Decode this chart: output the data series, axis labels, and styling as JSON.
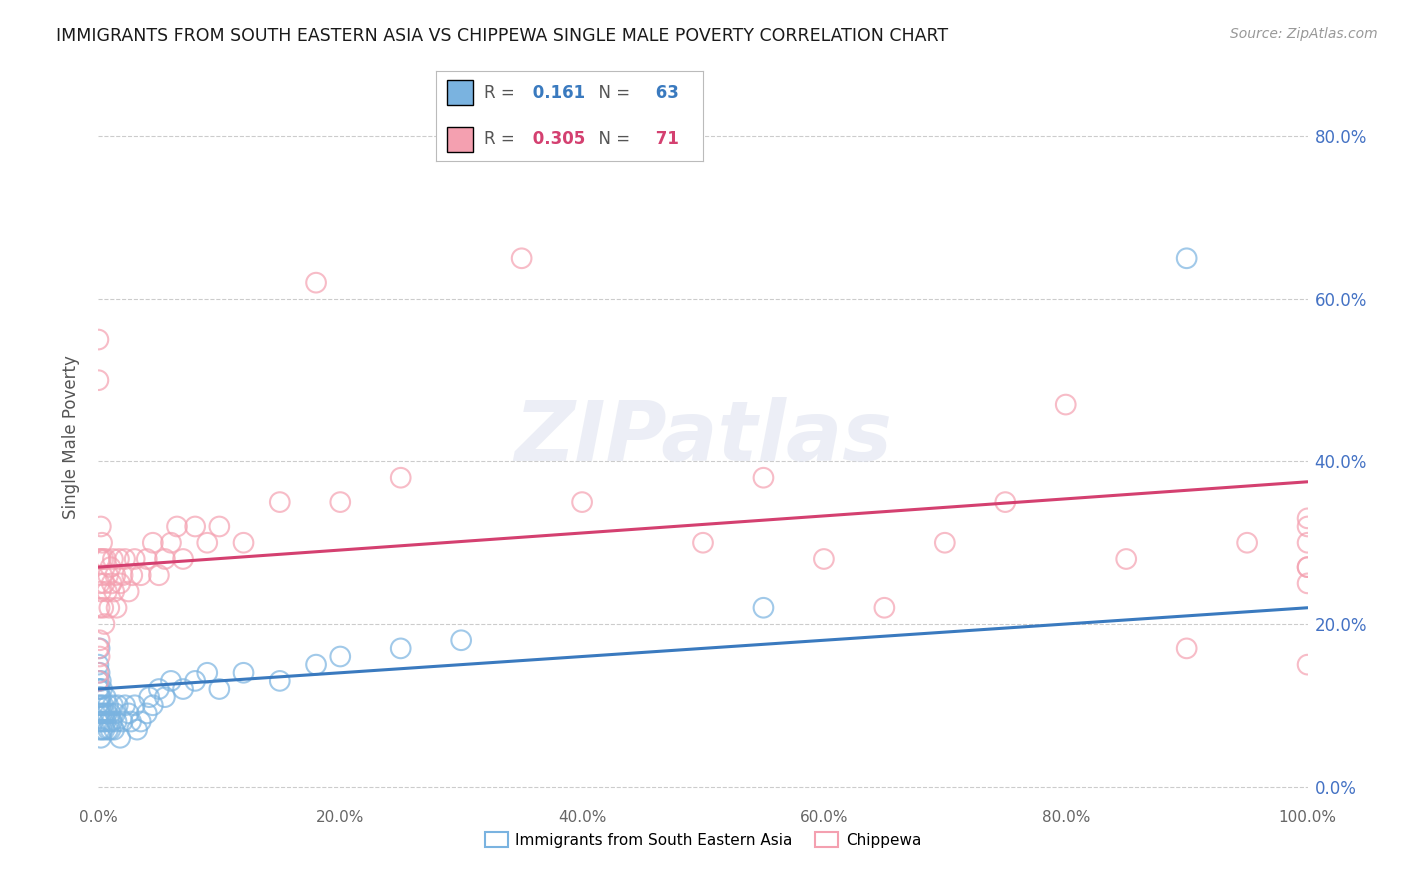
{
  "title": "IMMIGRANTS FROM SOUTH EASTERN ASIA VS CHIPPEWA SINGLE MALE POVERTY CORRELATION CHART",
  "source": "Source: ZipAtlas.com",
  "ylabel": "Single Male Poverty",
  "xlabel": "",
  "xlim": [
    0.0,
    1.0
  ],
  "ylim": [
    -0.02,
    0.88
  ],
  "blue_R": 0.161,
  "blue_N": 63,
  "pink_R": 0.305,
  "pink_N": 71,
  "blue_color": "#7ab3e0",
  "pink_color": "#f4a0b0",
  "blue_line_color": "#3a7abf",
  "pink_line_color": "#d44070",
  "blue_scatter": {
    "x": [
      0.0,
      0.0,
      0.0,
      0.0,
      0.0,
      0.001,
      0.001,
      0.001,
      0.001,
      0.001,
      0.001,
      0.002,
      0.002,
      0.002,
      0.002,
      0.002,
      0.003,
      0.003,
      0.003,
      0.004,
      0.004,
      0.005,
      0.005,
      0.006,
      0.006,
      0.007,
      0.008,
      0.008,
      0.009,
      0.01,
      0.01,
      0.011,
      0.012,
      0.013,
      0.014,
      0.015,
      0.016,
      0.018,
      0.02,
      0.022,
      0.025,
      0.027,
      0.03,
      0.032,
      0.035,
      0.04,
      0.042,
      0.045,
      0.05,
      0.055,
      0.06,
      0.07,
      0.08,
      0.09,
      0.1,
      0.12,
      0.15,
      0.18,
      0.2,
      0.25,
      0.3,
      0.55,
      0.9
    ],
    "y": [
      0.13,
      0.1,
      0.08,
      0.12,
      0.15,
      0.17,
      0.14,
      0.12,
      0.07,
      0.09,
      0.11,
      0.13,
      0.1,
      0.08,
      0.06,
      0.11,
      0.09,
      0.07,
      0.12,
      0.08,
      0.1,
      0.07,
      0.09,
      0.08,
      0.11,
      0.09,
      0.07,
      0.1,
      0.08,
      0.07,
      0.09,
      0.08,
      0.1,
      0.07,
      0.09,
      0.08,
      0.1,
      0.06,
      0.08,
      0.1,
      0.09,
      0.08,
      0.1,
      0.07,
      0.08,
      0.09,
      0.11,
      0.1,
      0.12,
      0.11,
      0.13,
      0.12,
      0.13,
      0.14,
      0.12,
      0.14,
      0.13,
      0.15,
      0.16,
      0.17,
      0.18,
      0.22,
      0.65
    ]
  },
  "pink_scatter": {
    "x": [
      0.0,
      0.0,
      0.0,
      0.0,
      0.0,
      0.001,
      0.001,
      0.001,
      0.001,
      0.001,
      0.002,
      0.002,
      0.002,
      0.003,
      0.003,
      0.004,
      0.004,
      0.005,
      0.005,
      0.006,
      0.007,
      0.008,
      0.009,
      0.01,
      0.011,
      0.012,
      0.013,
      0.014,
      0.015,
      0.017,
      0.018,
      0.02,
      0.022,
      0.025,
      0.028,
      0.03,
      0.035,
      0.04,
      0.045,
      0.05,
      0.055,
      0.06,
      0.065,
      0.07,
      0.08,
      0.09,
      0.1,
      0.12,
      0.15,
      0.18,
      0.2,
      0.25,
      0.35,
      0.4,
      0.5,
      0.55,
      0.6,
      0.65,
      0.7,
      0.75,
      0.8,
      0.85,
      0.9,
      0.95,
      1.0,
      1.0,
      1.0,
      1.0,
      1.0,
      1.0,
      1.0
    ],
    "y": [
      0.55,
      0.5,
      0.17,
      0.14,
      0.13,
      0.28,
      0.25,
      0.22,
      0.18,
      0.16,
      0.32,
      0.28,
      0.24,
      0.3,
      0.26,
      0.28,
      0.22,
      0.25,
      0.2,
      0.28,
      0.24,
      0.26,
      0.22,
      0.27,
      0.25,
      0.28,
      0.24,
      0.26,
      0.22,
      0.28,
      0.25,
      0.26,
      0.28,
      0.24,
      0.26,
      0.28,
      0.26,
      0.28,
      0.3,
      0.26,
      0.28,
      0.3,
      0.32,
      0.28,
      0.32,
      0.3,
      0.32,
      0.3,
      0.35,
      0.62,
      0.35,
      0.38,
      0.65,
      0.35,
      0.3,
      0.38,
      0.28,
      0.22,
      0.3,
      0.35,
      0.47,
      0.28,
      0.17,
      0.3,
      0.27,
      0.32,
      0.3,
      0.25,
      0.15,
      0.27,
      0.33
    ]
  },
  "watermark_text": "ZIPatlas",
  "yticks": [
    0.0,
    0.2,
    0.4,
    0.6,
    0.8
  ],
  "ytick_labels_right": [
    "0.0%",
    "20.0%",
    "40.0%",
    "60.0%",
    "80.0%"
  ],
  "xticks": [
    0.0,
    0.2,
    0.4,
    0.6,
    0.8,
    1.0
  ],
  "xtick_labels": [
    "0.0%",
    "20.0%",
    "40.0%",
    "60.0%",
    "80.0%",
    "100.0%"
  ],
  "background_color": "#ffffff",
  "blue_line_start_y": 0.12,
  "blue_line_end_y": 0.22,
  "pink_line_start_y": 0.27,
  "pink_line_end_y": 0.375
}
